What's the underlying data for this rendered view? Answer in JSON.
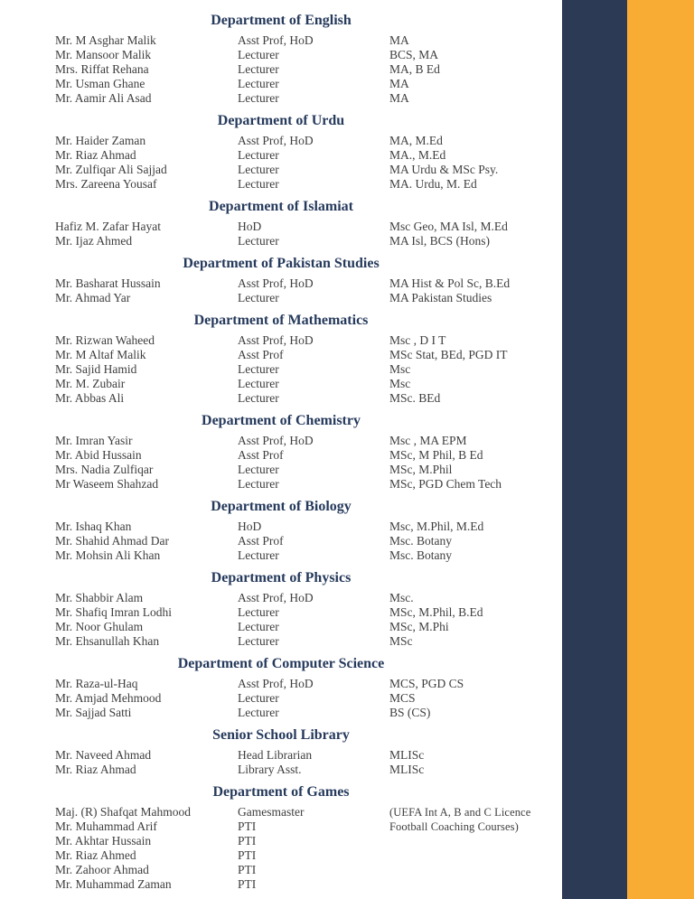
{
  "page": {
    "band_colors": {
      "navy": "#2c3a56",
      "orange": "#f9ac33"
    },
    "heading_color": "#263a5c"
  },
  "sections": [
    {
      "title": "Department of English",
      "rows": [
        {
          "name": "Mr. M Asghar Malik",
          "designation": "Asst Prof, HoD",
          "qualification": "MA"
        },
        {
          "name": "Mr. Mansoor Malik",
          "designation": "Lecturer",
          "qualification": "BCS, MA"
        },
        {
          "name": "Mrs. Riffat Rehana",
          "designation": "Lecturer",
          "qualification": "MA, B Ed"
        },
        {
          "name": "Mr. Usman Ghane",
          "designation": "Lecturer",
          "qualification": "MA"
        },
        {
          "name": "Mr. Aamir Ali Asad",
          "designation": "Lecturer",
          "qualification": "MA"
        }
      ]
    },
    {
      "title": "Department of Urdu",
      "rows": [
        {
          "name": "Mr. Haider Zaman",
          "designation": "Asst Prof, HoD",
          "qualification": "MA, M.Ed"
        },
        {
          "name": "Mr. Riaz Ahmad",
          "designation": "Lecturer",
          "qualification": "MA., M.Ed"
        },
        {
          "name": "Mr. Zulfiqar Ali Sajjad",
          "designation": "Lecturer",
          "qualification": "MA Urdu & MSc Psy."
        },
        {
          "name": "Mrs. Zareena Yousaf",
          "designation": "Lecturer",
          "qualification": "MA. Urdu, M. Ed"
        }
      ]
    },
    {
      "title": "Department of Islamiat",
      "rows": [
        {
          "name": "Hafiz M. Zafar Hayat",
          "designation": "HoD",
          "qualification": "Msc Geo, MA Isl, M.Ed"
        },
        {
          "name": "Mr. Ijaz Ahmed",
          "designation": "Lecturer",
          "qualification": "MA Isl, BCS (Hons)"
        }
      ]
    },
    {
      "title": "Department of Pakistan Studies",
      "rows": [
        {
          "name": "Mr. Basharat Hussain",
          "designation": "Asst Prof, HoD",
          "qualification": "MA Hist & Pol Sc, B.Ed"
        },
        {
          "name": "Mr. Ahmad Yar",
          "designation": "Lecturer",
          "qualification": "MA Pakistan Studies"
        }
      ]
    },
    {
      "title": "Department of Mathematics",
      "rows": [
        {
          "name": "Mr. Rizwan Waheed",
          "designation": "Asst Prof, HoD",
          "qualification": "Msc , D I T"
        },
        {
          "name": "Mr. M Altaf Malik",
          "designation": "Asst Prof",
          "qualification": "MSc Stat, BEd, PGD IT"
        },
        {
          "name": "Mr. Sajid Hamid",
          "designation": "Lecturer",
          "qualification": "Msc"
        },
        {
          "name": "Mr. M. Zubair",
          "designation": "Lecturer",
          "qualification": "Msc"
        },
        {
          "name": "Mr. Abbas Ali",
          "designation": "Lecturer",
          "qualification": "MSc. BEd"
        }
      ]
    },
    {
      "title": "Department of Chemistry",
      "rows": [
        {
          "name": "Mr. Imran Yasir",
          "designation": "Asst Prof, HoD",
          "qualification": "Msc , MA EPM"
        },
        {
          "name": "Mr. Abid Hussain",
          "designation": "Asst Prof",
          "qualification": "MSc, M Phil, B Ed"
        },
        {
          "name": "Mrs. Nadia Zulfiqar",
          "designation": "Lecturer",
          "qualification": "MSc, M.Phil"
        },
        {
          "name": "Mr Waseem Shahzad",
          "designation": "Lecturer",
          "qualification": "MSc, PGD Chem Tech"
        }
      ]
    },
    {
      "title": "Department of Biology",
      "rows": [
        {
          "name": "Mr. Ishaq Khan",
          "designation": "HoD",
          "qualification": "Msc, M.Phil, M.Ed"
        },
        {
          "name": "Mr. Shahid Ahmad Dar",
          "designation": "Asst Prof",
          "qualification": "Msc. Botany"
        },
        {
          "name": "Mr. Mohsin Ali Khan",
          "designation": "Lecturer",
          "qualification": "Msc. Botany"
        }
      ]
    },
    {
      "title": "Department of Physics",
      "rows": [
        {
          "name": "Mr. Shabbir Alam",
          "designation": "Asst Prof, HoD",
          "qualification": "Msc."
        },
        {
          "name": "Mr. Shafiq Imran Lodhi",
          "designation": "Lecturer",
          "qualification": "MSc, M.Phil, B.Ed"
        },
        {
          "name": "Mr. Noor Ghulam",
          "designation": "Lecturer",
          "qualification": "MSc, M.Phi"
        },
        {
          "name": "Mr. Ehsanullah Khan",
          "designation": "Lecturer",
          "qualification": "MSc"
        }
      ]
    },
    {
      "title": "Department of Computer Science",
      "rows": [
        {
          "name": "Mr. Raza-ul-Haq",
          "designation": "Asst Prof, HoD",
          "qualification": "MCS, PGD CS"
        },
        {
          "name": "Mr. Amjad Mehmood",
          "designation": "Lecturer",
          "qualification": "MCS"
        },
        {
          "name": "Mr. Sajjad Satti",
          "designation": "Lecturer",
          "qualification": "BS (CS)"
        }
      ]
    },
    {
      "title": "Senior School Library",
      "rows": [
        {
          "name": "Mr. Naveed Ahmad",
          "designation": "Head Librarian",
          "qualification": "MLISc"
        },
        {
          "name": "Mr. Riaz Ahmad",
          "designation": "Library Asst.",
          "qualification": "MLISc"
        }
      ]
    },
    {
      "title": "Department of Games",
      "rows": [
        {
          "name": "Maj. (R) Shafqat Mahmood",
          "designation": "Gamesmaster",
          "qualification": "(UEFA Int A, B and C Licence\nFootball Coaching Courses)"
        },
        {
          "name": "Mr. Muhammad Arif",
          "designation": "PTI",
          "qualification": ""
        },
        {
          "name": "Mr. Akhtar Hussain",
          "designation": "PTI",
          "qualification": ""
        },
        {
          "name": "Mr. Riaz Ahmed",
          "designation": "PTI",
          "qualification": ""
        },
        {
          "name": "Mr. Zahoor Ahmad",
          "designation": "PTI",
          "qualification": ""
        },
        {
          "name": "Mr. Muhammad Zaman",
          "designation": "PTI",
          "qualification": ""
        }
      ]
    }
  ]
}
